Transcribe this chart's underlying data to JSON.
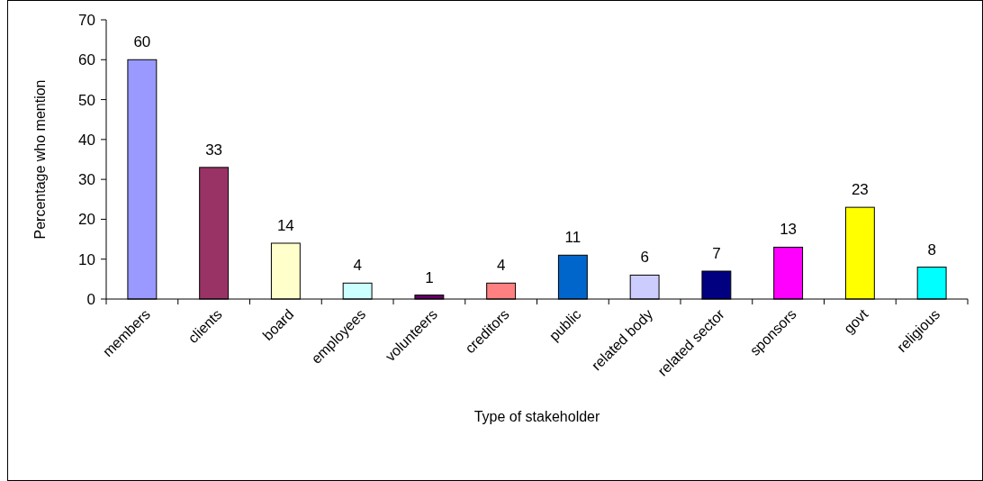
{
  "chart_data": {
    "type": "bar",
    "xlabel": "Type of stakeholder",
    "ylabel": "Percentage who mention",
    "categories": [
      "members",
      "clients",
      "board",
      "employees",
      "volunteers",
      "creditors",
      "public",
      "related body",
      "related sector",
      "sponsors",
      "govt",
      "religious"
    ],
    "values": [
      60,
      33,
      14,
      4,
      1,
      4,
      11,
      6,
      7,
      13,
      23,
      8
    ],
    "colors": [
      "#9999ff",
      "#993366",
      "#ffffcc",
      "#ccffff",
      "#660066",
      "#ff8080",
      "#0066cc",
      "#ccccff",
      "#000080",
      "#ff00ff",
      "#ffff00",
      "#00ffff"
    ],
    "ylim": [
      0,
      70
    ],
    "yticks": [
      0,
      10,
      20,
      30,
      40,
      50,
      60,
      70
    ],
    "data_labels": true,
    "grid": false
  }
}
